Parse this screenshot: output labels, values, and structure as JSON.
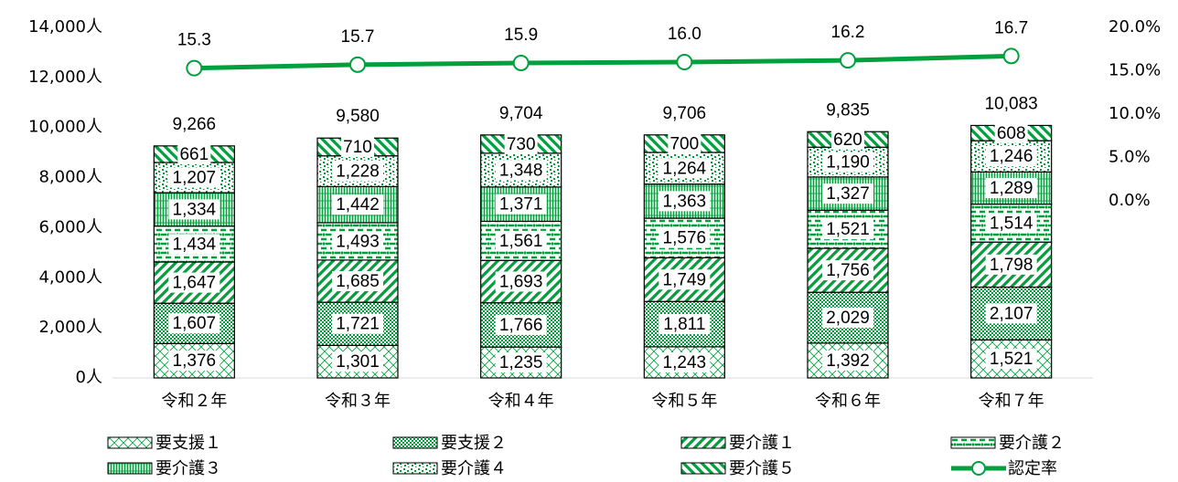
{
  "chart_data": {
    "type": "bar",
    "stacked": true,
    "categories": [
      "令和２年",
      "令和３年",
      "令和４年",
      "令和５年",
      "令和６年",
      "令和７年"
    ],
    "series": [
      {
        "name": "要支援１",
        "color": "#00a03c",
        "values": [
          1376,
          1301,
          1235,
          1243,
          1392,
          1521
        ],
        "value_labels": [
          "1,376",
          "1,301",
          "1,235",
          "1,243",
          "1,392",
          "1,521"
        ]
      },
      {
        "name": "要支援２",
        "color": "#00a03c",
        "values": [
          1607,
          1721,
          1766,
          1811,
          2029,
          2107
        ],
        "value_labels": [
          "1,607",
          "1,721",
          "1,766",
          "1,811",
          "2,029",
          "2,107"
        ]
      },
      {
        "name": "要介護１",
        "color": "#00a03c",
        "values": [
          1647,
          1685,
          1693,
          1749,
          1756,
          1798
        ],
        "value_labels": [
          "1,647",
          "1,685",
          "1,693",
          "1,749",
          "1,756",
          "1,798"
        ]
      },
      {
        "name": "要介護２",
        "color": "#00a03c",
        "values": [
          1434,
          1493,
          1561,
          1576,
          1521,
          1514
        ],
        "value_labels": [
          "1,434",
          "1,493",
          "1,561",
          "1,576",
          "1,521",
          "1,514"
        ]
      },
      {
        "name": "要介護３",
        "color": "#00a03c",
        "values": [
          1334,
          1442,
          1371,
          1363,
          1327,
          1289
        ],
        "value_labels": [
          "1,334",
          "1,442",
          "1,371",
          "1,363",
          "1,327",
          "1,289"
        ]
      },
      {
        "name": "要介護４",
        "color": "#00a03c",
        "values": [
          1207,
          1228,
          1348,
          1264,
          1190,
          1246
        ],
        "value_labels": [
          "1,207",
          "1,228",
          "1,348",
          "1,264",
          "1,190",
          "1,246"
        ]
      },
      {
        "name": "要介護５",
        "color": "#00a03c",
        "values": [
          661,
          710,
          730,
          700,
          620,
          608
        ]
      },
      {
        "name": "認定率",
        "type": "line",
        "axis": "y2",
        "color": "#00a03c",
        "values": [
          15.3,
          15.7,
          15.9,
          16.0,
          16.2,
          16.7
        ],
        "value_labels": [
          "15.3",
          "15.7",
          "15.9",
          "16.0",
          "16.2",
          "16.7"
        ]
      }
    ],
    "totals": [
      9266,
      9580,
      9704,
      9706,
      9835,
      10083
    ],
    "total_labels": [
      "9,266",
      "9,580",
      "9,704",
      "9,706",
      "9,835",
      "10,083"
    ],
    "ylim": [
      0,
      14000
    ],
    "yticks": [
      {
        "value": 0,
        "label": "0人"
      },
      {
        "value": 2000,
        "label": "2,000人"
      },
      {
        "value": 4000,
        "label": "4,000人"
      },
      {
        "value": 6000,
        "label": "6,000人"
      },
      {
        "value": 8000,
        "label": "8,000人"
      },
      {
        "value": 10000,
        "label": "10,000人"
      },
      {
        "value": 12000,
        "label": "12,000人"
      },
      {
        "value": 14000,
        "label": "14,000人"
      }
    ],
    "y2lim": [
      0,
      20
    ],
    "y2ticks": [
      {
        "value": 0,
        "label": "0.0%"
      },
      {
        "value": 5,
        "label": "5.0%"
      },
      {
        "value": 10,
        "label": "10.0%"
      },
      {
        "value": 15,
        "label": "15.0%"
      },
      {
        "value": 20,
        "label": "20.0%"
      }
    ],
    "legend": "bottom"
  }
}
